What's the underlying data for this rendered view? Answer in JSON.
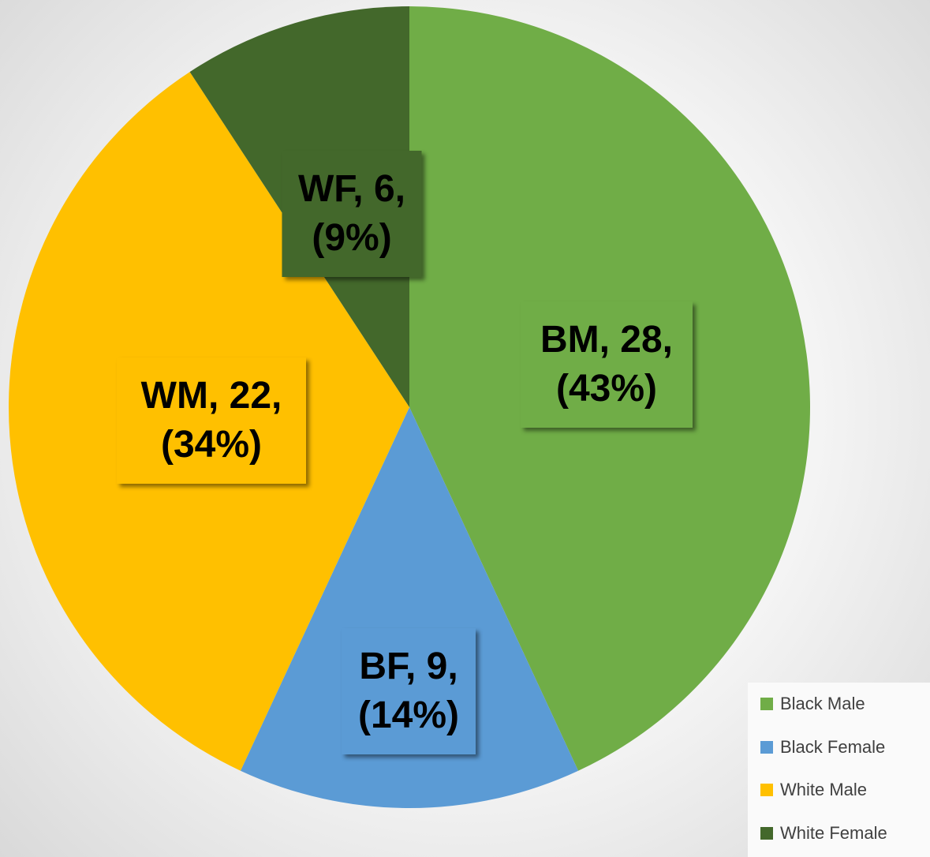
{
  "chart_data": {
    "type": "pie",
    "categories": [
      "Black Male",
      "Black Female",
      "White Male",
      "White Female"
    ],
    "values": [
      28,
      9,
      22,
      6
    ],
    "value_labels": [
      "BM, 28, (43%)",
      "BF, 9, (14%)",
      "WM, 22, (34%)",
      "WF, 6, (9%)"
    ],
    "colors": [
      "#70ad47",
      "#5b9bd5",
      "#ffc000",
      "#43682b"
    ],
    "legend": "bottom-right"
  }
}
